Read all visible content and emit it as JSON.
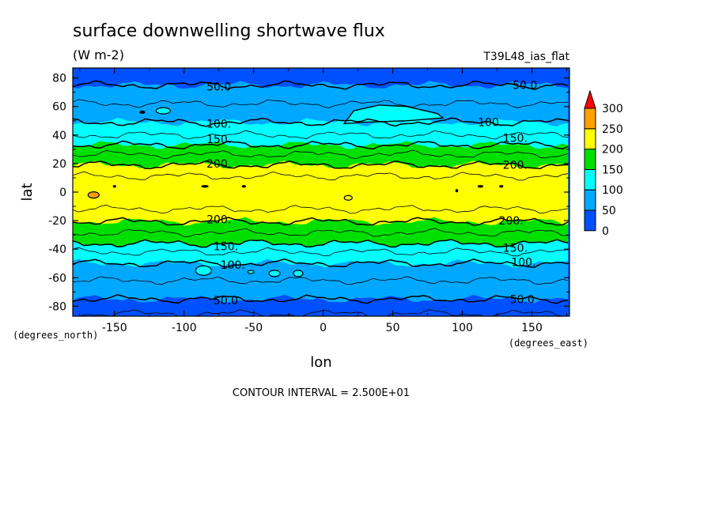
{
  "header": {
    "title": "surface downwelling shortwave flux",
    "units": "(W m-2)",
    "model": "T39L48_ias_flat"
  },
  "footer": {
    "contour_interval": "CONTOUR INTERVAL = 2.500E+01"
  },
  "chart_data": {
    "type": "heatmap",
    "title": "surface downwelling shortwave flux",
    "subtitle": "(W m-2)",
    "xlabel": "lon",
    "ylabel": "lat",
    "x_units": "(degrees_east)",
    "y_units": "(degrees_north)",
    "xlim": [
      -180,
      177
    ],
    "ylim": [
      -87,
      87
    ],
    "x_ticks": [
      -150,
      -100,
      -50,
      0,
      50,
      100,
      150
    ],
    "x_tick_labels": [
      "-150",
      "-100",
      "-50",
      "0",
      "50",
      "100",
      "150"
    ],
    "y_ticks": [
      80,
      60,
      40,
      20,
      0,
      -20,
      -40,
      -60,
      -80
    ],
    "y_tick_labels": [
      "80",
      "60",
      "40",
      "20",
      "0",
      "-20",
      "-40",
      "-60",
      "-80"
    ],
    "contour_interval": 25,
    "levels": [
      0,
      50,
      100,
      150,
      200,
      250,
      300
    ],
    "level_colors": [
      "#0050ff",
      "#00a8ff",
      "#00ffff",
      "#00e000",
      "#ffff00",
      "#ffa000",
      "#ff0000"
    ],
    "colorbar_labels": [
      "300",
      "250",
      "200",
      "150",
      "100",
      "50",
      "0"
    ],
    "zonal_profile": {
      "lat": [
        -87,
        -80,
        -75,
        -70,
        -62,
        -55,
        -50,
        -42,
        -36,
        -30,
        -24,
        -19,
        -14,
        -10,
        -5,
        0,
        5,
        10,
        15,
        19,
        24,
        30,
        36,
        40,
        46,
        55,
        62,
        68,
        75,
        80,
        87
      ],
      "value": [
        20,
        40,
        50,
        60,
        75,
        90,
        100,
        125,
        150,
        170,
        190,
        205,
        220,
        230,
        235,
        237,
        235,
        228,
        215,
        200,
        185,
        160,
        140,
        125,
        105,
        90,
        75,
        62,
        50,
        40,
        25
      ]
    },
    "contour_labels": [
      {
        "text": "50.0",
        "lon": -75,
        "lat": 74
      },
      {
        "text": "50.0",
        "lon": 145,
        "lat": 75
      },
      {
        "text": "100.",
        "lon": -75,
        "lat": 48
      },
      {
        "text": "100.",
        "lon": 120,
        "lat": 49
      },
      {
        "text": "150.",
        "lon": -75,
        "lat": 37
      },
      {
        "text": "150.",
        "lon": 138,
        "lat": 38
      },
      {
        "text": "200.",
        "lon": -75,
        "lat": 20
      },
      {
        "text": "200.",
        "lon": 138,
        "lat": 19
      },
      {
        "text": "200.",
        "lon": -75,
        "lat": -19
      },
      {
        "text": "200.",
        "lon": 135,
        "lat": -20
      },
      {
        "text": "150.",
        "lon": -70,
        "lat": -38
      },
      {
        "text": "150.",
        "lon": 138,
        "lat": -39
      },
      {
        "text": "100.",
        "lon": -65,
        "lat": -51
      },
      {
        "text": "100.",
        "lon": 144,
        "lat": -49
      },
      {
        "text": "50.0",
        "lon": -70,
        "lat": -76
      },
      {
        "text": "50.0",
        "lon": 143,
        "lat": -75
      }
    ],
    "legend_position": "right",
    "grid": false
  }
}
